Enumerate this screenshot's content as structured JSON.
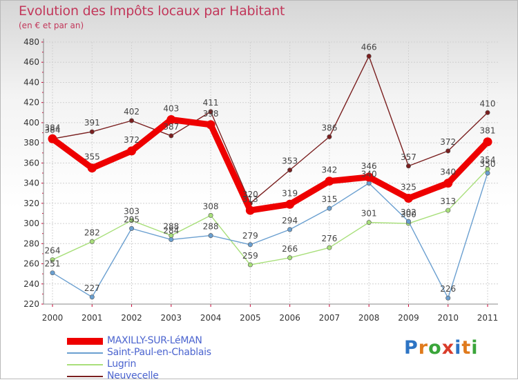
{
  "header": {
    "title": "Evolution des Impôts locaux par Habitant",
    "subtitle": "(en € et par an)"
  },
  "logo": {
    "text": "Proxiti",
    "letter_colors": [
      "#2d74c4",
      "#e07a1c",
      "#3aa53a",
      "#d93c2a",
      "#2d74c4",
      "#e07a1c",
      "#3aa53a"
    ]
  },
  "chart_data": {
    "type": "line",
    "title": "Evolution des Impôts locaux par Habitant",
    "subtitle": "(en € et par an)",
    "xlabel": "",
    "ylabel": "",
    "x": [
      "2000",
      "2001",
      "2002",
      "2003",
      "2004",
      "2005",
      "2006",
      "2007",
      "2008",
      "2009",
      "2010",
      "2011"
    ],
    "ylim": [
      220,
      480
    ],
    "yticks": [
      220,
      240,
      260,
      280,
      300,
      320,
      340,
      360,
      380,
      400,
      420,
      440,
      460,
      480
    ],
    "grid": true,
    "legend_position": "bottom-left",
    "series": [
      {
        "name": "Neuvecelle",
        "color": "#7a1f1f",
        "values": [
          384,
          391,
          402,
          387,
          411,
          320,
          353,
          386,
          466,
          357,
          372,
          410
        ]
      },
      {
        "name": "Lugrin",
        "color": "#a8df7a",
        "values": [
          264,
          282,
          303,
          288,
          308,
          259,
          266,
          276,
          301,
          300,
          313,
          354
        ]
      },
      {
        "name": "Saint-Paul-en-Chablais",
        "color": "#6a9fd0",
        "values": [
          251,
          227,
          295,
          284,
          288,
          279,
          294,
          315,
          340,
          302,
          226,
          350
        ]
      },
      {
        "name": "MAXILLY-SUR-LéMAN",
        "color": "#ee0000",
        "values": [
          384,
          355,
          372,
          403,
          398,
          313,
          319,
          342,
          346,
          325,
          340,
          381
        ]
      }
    ],
    "legend_order": [
      "MAXILLY-SUR-LéMAN",
      "Saint-Paul-en-Chablais",
      "Lugrin",
      "Neuvecelle"
    ]
  }
}
